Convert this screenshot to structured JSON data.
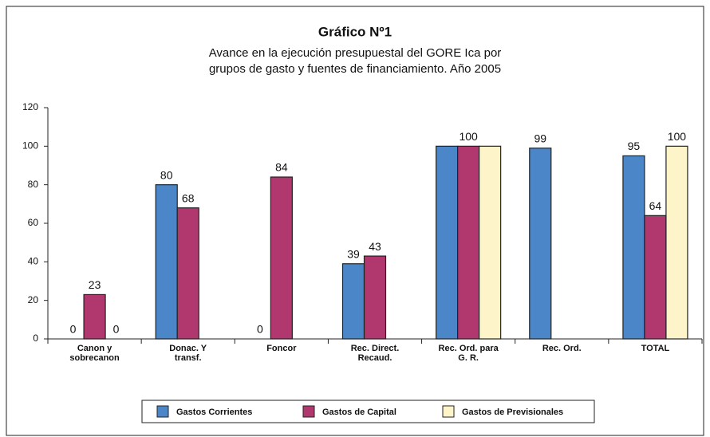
{
  "chart_data": {
    "type": "bar",
    "title": "Gráfico Nº1",
    "subtitle": [
      "Avance en la ejecución presupuestal del GORE Ica por",
      "grupos de gasto y fuentes de financiamiento. Año 2005"
    ],
    "categories": [
      "Canon y\nsobrecanon",
      "Donac. Y\ntransf.",
      "Foncor",
      "Rec. Direct.\nRecaud.",
      "Rec. Ord. para\nG. R.",
      "Rec. Ord.",
      "TOTAL"
    ],
    "series": [
      {
        "name": "Gastos Corrientes",
        "color": "#4a86c8",
        "values": [
          0,
          80,
          0,
          39,
          100,
          99,
          95
        ],
        "value_labels": [
          "0",
          "80",
          "0",
          "39",
          null,
          "99",
          "95"
        ]
      },
      {
        "name": "Gastos de Capital",
        "color": "#b0386e",
        "values": [
          23,
          68,
          84,
          43,
          100,
          null,
          64
        ],
        "value_labels": [
          "23",
          "68",
          "84",
          "43",
          "100",
          null,
          "64"
        ]
      },
      {
        "name": "Gastos de Previsionales",
        "color": "#fdf5c9",
        "values": [
          0,
          null,
          null,
          null,
          100,
          null,
          100
        ],
        "value_labels": [
          "0",
          null,
          null,
          null,
          null,
          null,
          "100"
        ]
      }
    ],
    "ylim": [
      0,
      120
    ],
    "yticks": [
      0,
      20,
      40,
      60,
      80,
      100,
      120
    ],
    "grid": false,
    "legend": "bottom"
  }
}
